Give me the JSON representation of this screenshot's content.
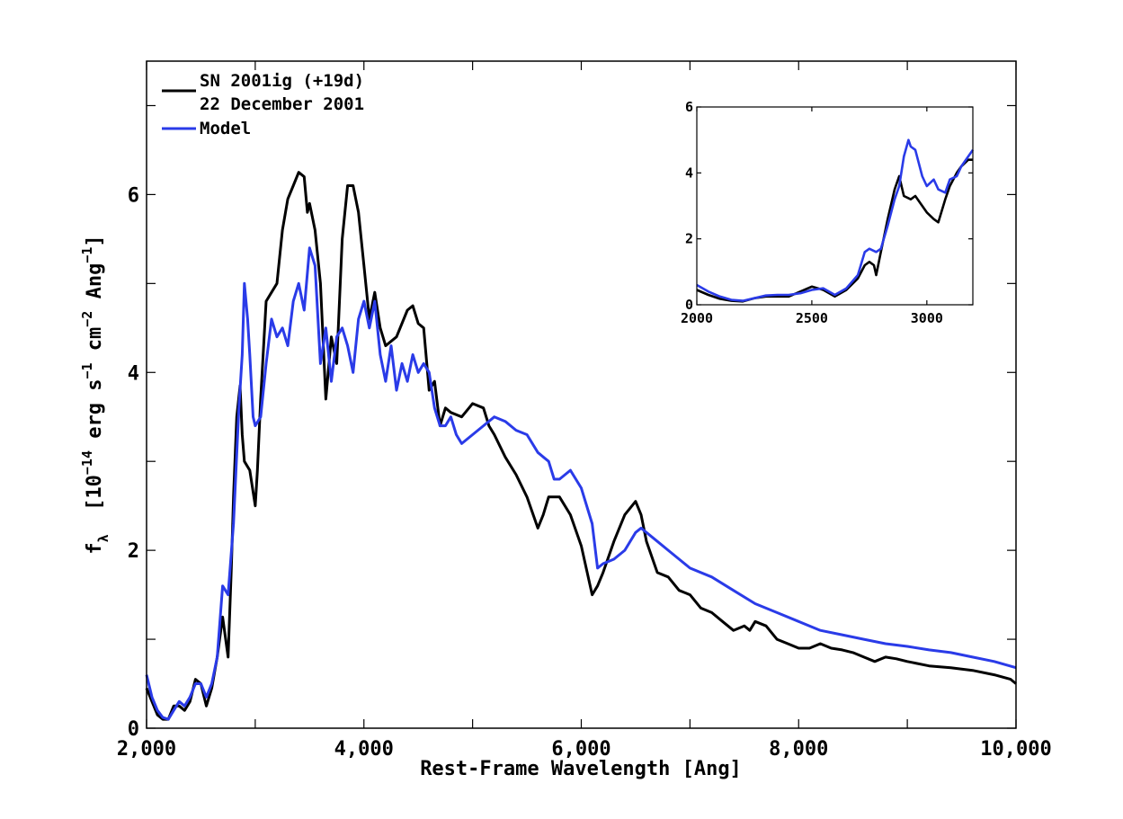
{
  "chart_data": [
    {
      "type": "line",
      "panel": "main",
      "xlabel": "Rest-Frame Wavelength [Ang]",
      "ylabel": {
        "f": "f",
        "lambda": "λ",
        "open": "[10",
        "exp1": "−14",
        "erg": "erg s",
        "exp2": "−1",
        "cm": "cm",
        "exp3": "−2",
        "ang": "Ang",
        "exp4": "−1",
        "close": "]"
      },
      "xlim": [
        2000,
        10000
      ],
      "ylim": [
        0,
        7.5
      ],
      "xticks": [
        2000,
        4000,
        6000,
        8000,
        10000
      ],
      "xticklabels": [
        "2,000",
        "4,000",
        "6,000",
        "8,000",
        "10,000"
      ],
      "yticks": [
        0,
        2,
        4,
        6
      ],
      "yticklabels": [
        "0",
        "2",
        "4",
        "6"
      ],
      "legend_position": "top-left",
      "legend": [
        {
          "label_line1": "SN 2001ig (+19d)",
          "label_line2": "22 December 2001",
          "color": "#000000"
        },
        {
          "label_line1": "Model",
          "color": "#2a3be8"
        }
      ],
      "series": [
        {
          "name": "SN 2001ig (+19d) 22 December 2001",
          "color": "#000000",
          "x": [
            2000,
            2050,
            2100,
            2150,
            2200,
            2250,
            2300,
            2350,
            2400,
            2450,
            2500,
            2550,
            2600,
            2650,
            2700,
            2750,
            2780,
            2800,
            2830,
            2860,
            2880,
            2900,
            2950,
            3000,
            3020,
            3050,
            3100,
            3150,
            3200,
            3250,
            3300,
            3350,
            3400,
            3450,
            3480,
            3500,
            3550,
            3600,
            3650,
            3700,
            3750,
            3800,
            3850,
            3900,
            3950,
            4000,
            4050,
            4100,
            4150,
            4200,
            4300,
            4400,
            4450,
            4500,
            4550,
            4600,
            4650,
            4700,
            4750,
            4800,
            4900,
            5000,
            5100,
            5150,
            5200,
            5300,
            5400,
            5500,
            5600,
            5650,
            5700,
            5800,
            5900,
            6000,
            6100,
            6150,
            6200,
            6300,
            6400,
            6500,
            6550,
            6600,
            6700,
            6800,
            6900,
            7000,
            7100,
            7200,
            7300,
            7400,
            7500,
            7550,
            7600,
            7700,
            7800,
            7900,
            8000,
            8100,
            8200,
            8300,
            8400,
            8500,
            8600,
            8700,
            8800,
            8900,
            9000,
            9200,
            9400,
            9600,
            9800,
            9950,
            10000
          ],
          "y": [
            0.45,
            0.3,
            0.15,
            0.1,
            0.1,
            0.25,
            0.25,
            0.2,
            0.3,
            0.55,
            0.5,
            0.25,
            0.45,
            0.8,
            1.25,
            0.8,
            1.8,
            2.6,
            3.5,
            3.85,
            3.3,
            3.0,
            2.9,
            2.5,
            2.9,
            3.7,
            4.8,
            4.9,
            5.0,
            5.6,
            5.95,
            6.1,
            6.25,
            6.2,
            5.8,
            5.9,
            5.6,
            5.0,
            3.7,
            4.4,
            4.1,
            5.5,
            6.1,
            6.1,
            5.8,
            5.2,
            4.6,
            4.9,
            4.5,
            4.3,
            4.4,
            4.7,
            4.75,
            4.55,
            4.5,
            3.8,
            3.9,
            3.4,
            3.6,
            3.55,
            3.5,
            3.65,
            3.6,
            3.4,
            3.3,
            3.05,
            2.85,
            2.6,
            2.25,
            2.4,
            2.6,
            2.6,
            2.4,
            2.05,
            1.5,
            1.6,
            1.75,
            2.1,
            2.4,
            2.55,
            2.4,
            2.1,
            1.75,
            1.7,
            1.55,
            1.5,
            1.35,
            1.3,
            1.2,
            1.1,
            1.15,
            1.1,
            1.2,
            1.15,
            1.0,
            0.95,
            0.9,
            0.9,
            0.95,
            0.9,
            0.88,
            0.85,
            0.8,
            0.75,
            0.8,
            0.78,
            0.75,
            0.7,
            0.68,
            0.65,
            0.6,
            0.55,
            0.5
          ]
        },
        {
          "name": "Model",
          "color": "#2a3be8",
          "x": [
            2000,
            2050,
            2100,
            2150,
            2200,
            2250,
            2300,
            2350,
            2400,
            2450,
            2500,
            2550,
            2600,
            2650,
            2700,
            2750,
            2800,
            2850,
            2880,
            2900,
            2930,
            2950,
            2980,
            3000,
            3050,
            3100,
            3150,
            3200,
            3250,
            3300,
            3350,
            3400,
            3450,
            3500,
            3550,
            3600,
            3650,
            3700,
            3750,
            3800,
            3850,
            3900,
            3950,
            4000,
            4050,
            4100,
            4150,
            4200,
            4250,
            4300,
            4350,
            4400,
            4450,
            4500,
            4550,
            4600,
            4650,
            4700,
            4750,
            4800,
            4850,
            4900,
            5000,
            5100,
            5200,
            5300,
            5400,
            5500,
            5600,
            5650,
            5700,
            5750,
            5800,
            5900,
            6000,
            6100,
            6150,
            6200,
            6300,
            6400,
            6500,
            6550,
            6600,
            6700,
            6800,
            6900,
            7000,
            7200,
            7400,
            7600,
            7800,
            8000,
            8200,
            8400,
            8600,
            8800,
            9000,
            9200,
            9400,
            9600,
            9800,
            10000
          ],
          "y": [
            0.6,
            0.35,
            0.2,
            0.12,
            0.1,
            0.2,
            0.3,
            0.25,
            0.35,
            0.5,
            0.5,
            0.35,
            0.5,
            0.8,
            1.6,
            1.5,
            2.3,
            3.6,
            4.2,
            5.0,
            4.6,
            4.2,
            3.5,
            3.4,
            3.5,
            4.1,
            4.6,
            4.4,
            4.5,
            4.3,
            4.8,
            5.0,
            4.7,
            5.4,
            5.2,
            4.1,
            4.5,
            3.9,
            4.4,
            4.5,
            4.3,
            4.0,
            4.6,
            4.8,
            4.5,
            4.8,
            4.2,
            3.9,
            4.3,
            3.8,
            4.1,
            3.9,
            4.2,
            4.0,
            4.1,
            4.0,
            3.6,
            3.4,
            3.4,
            3.5,
            3.3,
            3.2,
            3.3,
            3.4,
            3.5,
            3.45,
            3.35,
            3.3,
            3.1,
            3.05,
            3.0,
            2.8,
            2.8,
            2.9,
            2.7,
            2.3,
            1.8,
            1.85,
            1.9,
            2.0,
            2.2,
            2.25,
            2.2,
            2.1,
            2.0,
            1.9,
            1.8,
            1.7,
            1.55,
            1.4,
            1.3,
            1.2,
            1.1,
            1.05,
            1.0,
            0.95,
            0.92,
            0.88,
            0.85,
            0.8,
            0.75,
            0.68
          ]
        }
      ]
    },
    {
      "type": "line",
      "panel": "inset",
      "xlim": [
        2000,
        3200
      ],
      "ylim": [
        0,
        6
      ],
      "xticks": [
        2000,
        2500,
        3000
      ],
      "xticklabels": [
        "2000",
        "2500",
        "3000"
      ],
      "yticks": [
        0,
        2,
        4,
        6
      ],
      "yticklabels": [
        "0",
        "2",
        "4",
        "6"
      ],
      "series": [
        {
          "name": "SN 2001ig (+19d)",
          "color": "#000000",
          "x": [
            2000,
            2050,
            2100,
            2150,
            2200,
            2250,
            2300,
            2350,
            2400,
            2450,
            2500,
            2550,
            2600,
            2650,
            2700,
            2730,
            2750,
            2770,
            2780,
            2800,
            2830,
            2860,
            2880,
            2900,
            2930,
            2950,
            2980,
            3000,
            3030,
            3050,
            3080,
            3100,
            3130,
            3150,
            3180,
            3200
          ],
          "y": [
            0.45,
            0.3,
            0.18,
            0.12,
            0.1,
            0.2,
            0.25,
            0.25,
            0.25,
            0.4,
            0.55,
            0.45,
            0.25,
            0.45,
            0.8,
            1.2,
            1.3,
            1.2,
            0.9,
            1.6,
            2.6,
            3.5,
            3.9,
            3.3,
            3.2,
            3.3,
            3.0,
            2.8,
            2.6,
            2.5,
            3.2,
            3.6,
            4.0,
            4.2,
            4.4,
            4.4
          ]
        },
        {
          "name": "Model",
          "color": "#2a3be8",
          "x": [
            2000,
            2050,
            2100,
            2150,
            2200,
            2250,
            2300,
            2350,
            2400,
            2450,
            2500,
            2550,
            2600,
            2650,
            2700,
            2730,
            2750,
            2780,
            2800,
            2830,
            2860,
            2880,
            2900,
            2920,
            2930,
            2950,
            2980,
            3000,
            3030,
            3050,
            3080,
            3100,
            3130,
            3150,
            3180,
            3200
          ],
          "y": [
            0.6,
            0.4,
            0.25,
            0.15,
            0.12,
            0.2,
            0.28,
            0.3,
            0.3,
            0.35,
            0.45,
            0.5,
            0.3,
            0.5,
            0.9,
            1.6,
            1.7,
            1.6,
            1.7,
            2.4,
            3.2,
            3.6,
            4.5,
            5.0,
            4.8,
            4.7,
            3.9,
            3.6,
            3.8,
            3.5,
            3.4,
            3.8,
            3.9,
            4.2,
            4.5,
            4.7
          ]
        }
      ]
    }
  ]
}
